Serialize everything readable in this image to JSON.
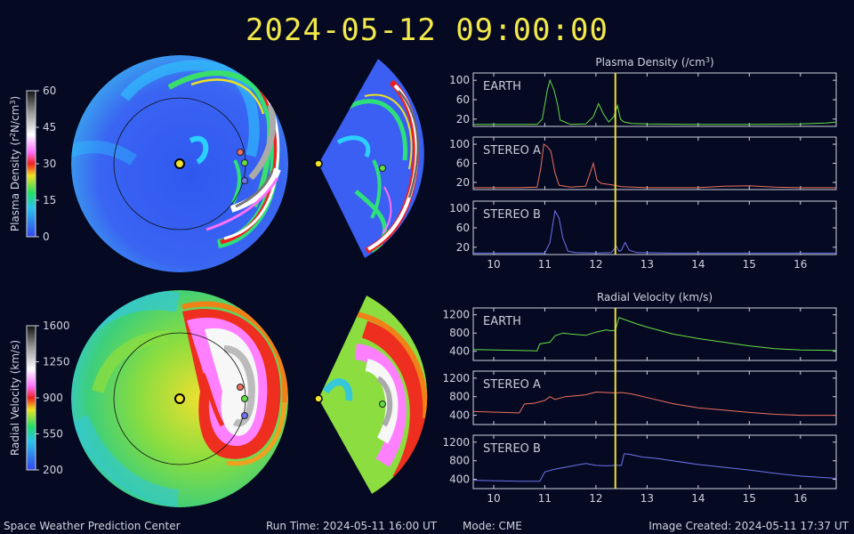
{
  "title": "2024-05-12 09:00:00",
  "footer": {
    "left": "Space Weather Prediction Center",
    "run_time": "Run Time: 2024-05-11 16:00 UT",
    "mode": "Mode: CME",
    "created": "Image Created: 2024-05-11 17:37 UT"
  },
  "colorbars": {
    "density": {
      "label_pre": "Plasma Density (r",
      "label_sup1": "2",
      "label_mid": "N/cm",
      "label_sup2": "3",
      "label_post": ")",
      "ticks": [
        "0",
        "15",
        "30",
        "45",
        "60"
      ],
      "range": [
        0,
        60
      ]
    },
    "velocity": {
      "label": "Radial Velocity (km/s)",
      "ticks": [
        "200",
        "550",
        "900",
        "1250",
        "1600"
      ],
      "range": [
        200,
        1600
      ]
    }
  },
  "colors": {
    "earth": "#66dd44",
    "stereo_a": "#f07060",
    "stereo_b": "#6f72ee",
    "marker": "#f0e030",
    "background": "#050a22"
  },
  "chart_data": [
    {
      "type": "line",
      "title_pre": "Plasma Density (/cm",
      "title_sup": "3",
      "title_post": ")",
      "xlim": [
        9.6,
        16.7
      ],
      "x_ticks": [
        "10",
        "11",
        "12",
        "13",
        "14",
        "15",
        "16"
      ],
      "current_time": 12.38,
      "series": [
        {
          "name": "EARTH",
          "color": "#66dd44",
          "ylim": [
            5,
            115
          ],
          "y_ticks": [
            "20",
            "60",
            "100"
          ],
          "x": [
            9.6,
            10.0,
            10.5,
            10.85,
            10.95,
            11.05,
            11.1,
            11.18,
            11.25,
            11.3,
            11.5,
            11.8,
            11.95,
            12.05,
            12.15,
            12.25,
            12.35,
            12.42,
            12.48,
            12.55,
            12.7,
            13.0,
            14.0,
            15.0,
            16.0,
            16.5,
            16.7
          ],
          "y": [
            9,
            9,
            9,
            9,
            20,
            80,
            100,
            80,
            50,
            18,
            9,
            10,
            25,
            52,
            30,
            14,
            25,
            48,
            20,
            14,
            11,
            10,
            9,
            9,
            10,
            12,
            14
          ]
        },
        {
          "name": "STEREO A",
          "color": "#f07060",
          "ylim": [
            5,
            115
          ],
          "y_ticks": [
            "20",
            "60",
            "100"
          ],
          "x": [
            9.6,
            10.5,
            10.85,
            10.92,
            10.98,
            11.05,
            11.12,
            11.2,
            11.28,
            11.5,
            11.8,
            11.88,
            11.95,
            12.02,
            12.1,
            12.3,
            12.5,
            13.0,
            13.5,
            14.0,
            14.5,
            15.0,
            15.5,
            16.0,
            16.7
          ],
          "y": [
            9,
            9,
            10,
            50,
            100,
            95,
            85,
            40,
            14,
            10,
            12,
            38,
            60,
            25,
            18,
            15,
            11,
            9,
            9,
            9,
            12,
            13,
            10,
            9,
            9
          ]
        },
        {
          "name": "STEREO B",
          "color": "#6f72ee",
          "ylim": [
            5,
            115
          ],
          "y_ticks": [
            "20",
            "60",
            "100"
          ],
          "x": [
            9.6,
            10.5,
            11.0,
            11.1,
            11.2,
            11.28,
            11.35,
            11.45,
            11.6,
            12.0,
            12.3,
            12.4,
            12.45,
            12.5,
            12.57,
            12.65,
            12.8,
            13.5,
            14.5,
            15.5,
            16.7
          ],
          "y": [
            8,
            8,
            8,
            30,
            95,
            80,
            40,
            12,
            9,
            8,
            9,
            22,
            12,
            14,
            30,
            14,
            9,
            8,
            8,
            8,
            8
          ]
        }
      ]
    },
    {
      "type": "line",
      "title": "Radial Velocity (km/s)",
      "xlim": [
        9.6,
        16.7
      ],
      "x_ticks": [
        "10",
        "11",
        "12",
        "13",
        "14",
        "15",
        "16"
      ],
      "current_time": 12.38,
      "series": [
        {
          "name": "EARTH",
          "color": "#66dd44",
          "ylim": [
            200,
            1350
          ],
          "y_ticks": [
            "400",
            "800",
            "1200"
          ],
          "x": [
            9.6,
            10.5,
            10.85,
            10.9,
            11.1,
            11.2,
            11.35,
            11.5,
            11.8,
            12.0,
            12.2,
            12.3,
            12.38,
            12.45,
            12.6,
            12.8,
            13.0,
            13.5,
            14.0,
            14.5,
            15.0,
            15.5,
            16.0,
            16.7
          ],
          "y": [
            440,
            420,
            410,
            560,
            600,
            740,
            800,
            780,
            750,
            820,
            870,
            850,
            860,
            1140,
            1080,
            1000,
            930,
            780,
            680,
            600,
            520,
            460,
            430,
            420
          ]
        },
        {
          "name": "STEREO A",
          "color": "#f07060",
          "ylim": [
            200,
            1350
          ],
          "y_ticks": [
            "400",
            "800",
            "1200"
          ],
          "x": [
            9.6,
            10.2,
            10.5,
            10.6,
            10.8,
            11.0,
            11.1,
            11.2,
            11.4,
            11.6,
            11.8,
            12.0,
            12.2,
            12.38,
            12.5,
            12.7,
            13.0,
            13.5,
            14.0,
            14.5,
            15.0,
            15.5,
            16.0,
            16.7
          ],
          "y": [
            480,
            460,
            450,
            640,
            660,
            720,
            800,
            740,
            800,
            820,
            840,
            900,
            890,
            880,
            890,
            860,
            780,
            650,
            560,
            510,
            460,
            420,
            400,
            400
          ]
        },
        {
          "name": "STEREO B",
          "color": "#6f72ee",
          "ylim": [
            200,
            1350
          ],
          "y_ticks": [
            "400",
            "800",
            "1200"
          ],
          "x": [
            9.6,
            10.5,
            10.9,
            11.0,
            11.2,
            11.4,
            11.6,
            11.8,
            12.0,
            12.2,
            12.4,
            12.5,
            12.55,
            12.65,
            12.9,
            13.2,
            13.5,
            14.0,
            14.5,
            15.0,
            15.5,
            16.0,
            16.7
          ],
          "y": [
            380,
            360,
            360,
            560,
            620,
            660,
            700,
            740,
            700,
            690,
            700,
            700,
            950,
            940,
            880,
            850,
            800,
            720,
            660,
            600,
            530,
            470,
            420
          ]
        }
      ]
    }
  ]
}
